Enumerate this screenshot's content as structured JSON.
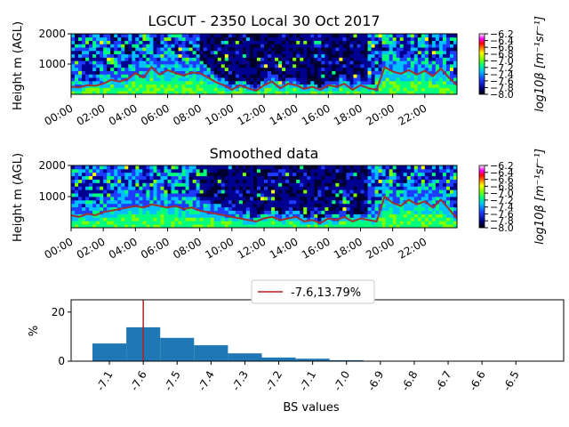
{
  "chart_data": [
    {
      "type": "heatmap",
      "title": "LGCUT - 2350 Local 30 Oct 2017",
      "ylabel": "Height m (AGL)",
      "x_ticks": [
        "00:00",
        "02:00",
        "04:00",
        "06:00",
        "08:00",
        "10:00",
        "12:00",
        "14:00",
        "16:00",
        "18:00",
        "20:00",
        "22:00"
      ],
      "y_ticks": [
        "1000",
        "2000"
      ],
      "ylim": [
        0,
        2000
      ],
      "xlim_hours": [
        0,
        24
      ],
      "colorbar": {
        "label": "log10β [m⁻¹sr⁻¹]",
        "ticks": [
          "−6.2",
          "−6.4",
          "−6.6",
          "−6.8",
          "−7.0",
          "−7.2",
          "−7.4",
          "−7.6",
          "−7.8",
          "−8.0"
        ],
        "range": [
          -8.0,
          -6.2
        ]
      },
      "overlay_line": {
        "color": "#a0302c",
        "x_hours": [
          0,
          0.5,
          1,
          1.5,
          2,
          2.5,
          3,
          3.5,
          4,
          4.5,
          5,
          5.5,
          6,
          6.5,
          7,
          7.5,
          8,
          8.5,
          9,
          9.5,
          10,
          10.5,
          11,
          11.5,
          12,
          12.5,
          13,
          13.5,
          14,
          14.5,
          15,
          15.5,
          16,
          16.5,
          17,
          17.5,
          18,
          18.5,
          19,
          19.5,
          20,
          20.5,
          21,
          21.5,
          22,
          22.5,
          23,
          23.5,
          24
        ],
        "height_m": [
          250,
          230,
          300,
          280,
          350,
          480,
          420,
          500,
          700,
          550,
          900,
          650,
          800,
          700,
          620,
          720,
          700,
          560,
          400,
          300,
          150,
          300,
          200,
          120,
          300,
          420,
          200,
          350,
          300,
          180,
          250,
          150,
          300,
          250,
          350,
          150,
          300,
          200,
          150,
          900,
          750,
          680,
          800,
          650,
          780,
          600,
          850,
          550,
          300
        ]
      }
    },
    {
      "type": "heatmap",
      "title": "Smoothed data",
      "ylabel": "Height m (AGL)",
      "x_ticks": [
        "00:00",
        "02:00",
        "04:00",
        "06:00",
        "08:00",
        "10:00",
        "12:00",
        "14:00",
        "16:00",
        "18:00",
        "20:00",
        "22:00"
      ],
      "y_ticks": [
        "1000",
        "2000"
      ],
      "ylim": [
        0,
        2000
      ],
      "xlim_hours": [
        0,
        24
      ],
      "colorbar": {
        "label": "log10β [m⁻¹sr⁻¹]",
        "ticks": [
          "−6.2",
          "−6.4",
          "−6.6",
          "−6.8",
          "−7.0",
          "−7.2",
          "−7.4",
          "−7.6",
          "−7.8",
          "−8.0"
        ],
        "range": [
          -8.0,
          -6.2
        ]
      },
      "overlay_line": {
        "color": "#a0302c",
        "x_hours": [
          0,
          0.5,
          1,
          1.5,
          2,
          2.5,
          3,
          3.5,
          4,
          4.5,
          5,
          5.5,
          6,
          6.5,
          7,
          7.5,
          8,
          8.5,
          9,
          9.5,
          10,
          10.5,
          11,
          11.5,
          12,
          12.5,
          13,
          13.5,
          14,
          14.5,
          15,
          15.5,
          16,
          16.5,
          17,
          17.5,
          18,
          18.5,
          19,
          19.5,
          20,
          20.5,
          21,
          21.5,
          22,
          22.5,
          23,
          23.5,
          24
        ],
        "height_m": [
          400,
          350,
          450,
          400,
          500,
          550,
          600,
          650,
          700,
          650,
          750,
          700,
          650,
          700,
          600,
          650,
          550,
          500,
          450,
          400,
          350,
          300,
          250,
          200,
          300,
          350,
          250,
          300,
          350,
          200,
          250,
          150,
          300,
          250,
          350,
          200,
          300,
          250,
          200,
          1000,
          800,
          700,
          900,
          750,
          850,
          650,
          900,
          600,
          300
        ]
      }
    },
    {
      "type": "bar",
      "title": "",
      "xlabel": "BS values",
      "ylabel": "%",
      "categories": [
        "-7.1",
        "-7.6",
        "-7.5",
        "-7.4",
        "-7.3",
        "-7.2",
        "-7.1",
        "-7.0",
        "-6.9",
        "-6.8",
        "-6.7",
        "-6.6",
        "-6.5"
      ],
      "values": [
        7.2,
        13.79,
        9.5,
        6.5,
        3.2,
        1.5,
        1.0,
        0.4,
        0.15,
        0.1,
        0.05,
        0.03,
        0.02
      ],
      "ylim": [
        0,
        25
      ],
      "y_ticks": [
        "0",
        "20"
      ],
      "bar_color": "#1f77b4",
      "vline": {
        "at_category_index": 1,
        "color": "#b22222",
        "label": "-7.6,13.79%"
      },
      "legend_position": "top-center"
    }
  ]
}
